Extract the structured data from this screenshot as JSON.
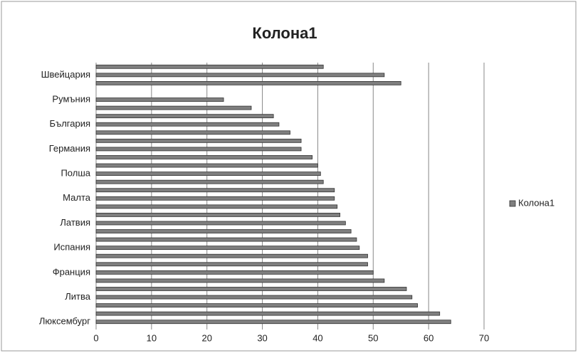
{
  "chart_data": {
    "type": "hbar",
    "title": "Колона1",
    "categories": [
      "Люксембург",
      null,
      null,
      "Литва",
      null,
      null,
      "Франция",
      null,
      null,
      "Испания",
      null,
      null,
      "Латвия",
      null,
      null,
      "Малта",
      null,
      null,
      "Полша",
      null,
      null,
      "Германия",
      null,
      null,
      "България",
      null,
      null,
      "Румъния",
      null,
      null,
      "Швейцария",
      null
    ],
    "series": [
      {
        "name": "Колона1",
        "color": "#7f7f7f",
        "values": [
          64,
          62,
          58,
          57,
          56,
          52,
          50,
          49,
          49,
          47.5,
          47,
          46,
          45,
          44,
          43.5,
          43,
          43,
          41,
          40.5,
          40,
          39,
          37,
          37,
          35,
          33,
          32,
          28,
          23,
          null,
          55,
          52,
          41
        ]
      }
    ],
    "xlim": [
      0,
      70
    ],
    "xticks": [
      0,
      10,
      20,
      30,
      40,
      50,
      60,
      70
    ],
    "grid": true,
    "legend": "right"
  }
}
